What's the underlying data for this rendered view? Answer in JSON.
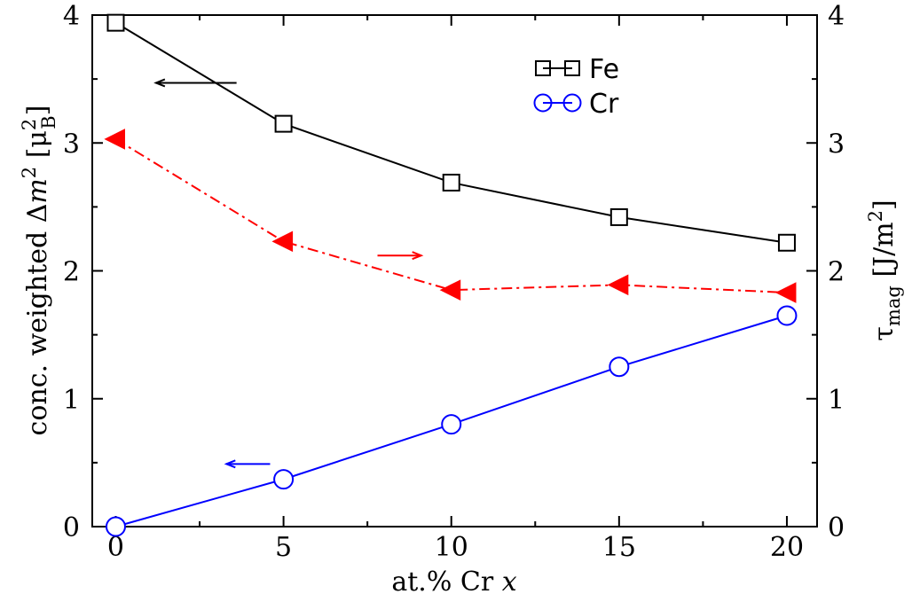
{
  "chart_data": {
    "type": "line",
    "xlabel": "at.% Cr x",
    "ylabel_left": "conc. weighted Δm² [μ²B]",
    "ylabel_right": "τmag [J/m²]",
    "xlim": [
      -0.7,
      20.9
    ],
    "ylim_left": [
      0,
      4
    ],
    "ylim_right": [
      0,
      4
    ],
    "x_ticks": [
      0,
      5,
      10,
      15,
      20
    ],
    "y_ticks_left": [
      0,
      1,
      2,
      3,
      4
    ],
    "y_ticks_right": [
      0,
      1,
      2,
      3,
      4
    ],
    "x": [
      0,
      5,
      10,
      15,
      20
    ],
    "series": [
      {
        "name": "Fe",
        "axis": "left",
        "values": [
          3.94,
          3.15,
          2.69,
          2.42,
          2.22
        ],
        "color": "#000000",
        "marker": "square",
        "line": "solid"
      },
      {
        "name": "Cr",
        "axis": "left",
        "values": [
          0.0,
          0.37,
          0.8,
          1.25,
          1.65
        ],
        "color": "#0000ff",
        "marker": "circle",
        "line": "solid"
      },
      {
        "name": "",
        "axis": "right",
        "values": [
          3.03,
          2.23,
          1.85,
          1.89,
          1.83
        ],
        "color": "#ff0000",
        "marker": "triangle-left",
        "line": "dashdot"
      }
    ],
    "legend": {
      "position": "top-right",
      "entries": [
        "Fe",
        "Cr"
      ]
    },
    "annotations": [
      {
        "series": "Fe",
        "arrow": "left",
        "color": "#000000"
      },
      {
        "series": "tau",
        "arrow": "right",
        "color": "#ff0000"
      },
      {
        "series": "Cr",
        "arrow": "left",
        "color": "#0000ff"
      }
    ]
  }
}
